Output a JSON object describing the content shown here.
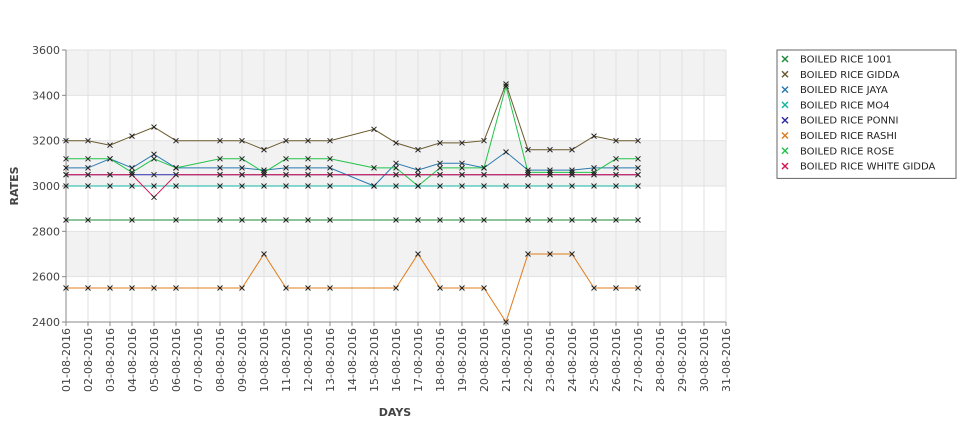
{
  "chart_data": {
    "type": "line",
    "xlabel": "DAYS",
    "ylabel": "RATES",
    "ylim": [
      2400,
      3600
    ],
    "yticks": [
      2400,
      2600,
      2800,
      3000,
      3200,
      3400,
      3600
    ],
    "grid": true,
    "legend_position": "right",
    "categories": [
      "01-08-2016",
      "02-08-2016",
      "03-08-2016",
      "04-08-2016",
      "05-08-2016",
      "06-08-2016",
      "07-08-2016",
      "08-08-2016",
      "09-08-2016",
      "10-08-2016",
      "11-08-2016",
      "12-08-2016",
      "13-08-2016",
      "14-08-2016",
      "15-08-2016",
      "16-08-2016",
      "17-08-2016",
      "18-08-2016",
      "19-08-2016",
      "20-08-2016",
      "21-08-2016",
      "22-08-2016",
      "23-08-2016",
      "24-08-2016",
      "25-08-2016",
      "26-08-2016",
      "27-08-2016",
      "28-08-2016",
      "29-08-2016",
      "30-08-2016",
      "31-08-2016"
    ],
    "series": [
      {
        "name": "BOILED RICE 1001",
        "color": "#1e8a3a",
        "values": [
          2850,
          2850,
          null,
          2850,
          null,
          2850,
          null,
          2850,
          2850,
          2850,
          2850,
          2850,
          2850,
          null,
          null,
          2850,
          2850,
          2850,
          2850,
          2850,
          null,
          2850,
          2850,
          2850,
          2850,
          2850,
          2850,
          null,
          null,
          null,
          null
        ]
      },
      {
        "name": "BOILED RICE GIDDA",
        "color": "#6b5a2e",
        "values": [
          3200,
          3200,
          3180,
          3220,
          3260,
          3200,
          null,
          3200,
          3200,
          3160,
          3200,
          3200,
          3200,
          null,
          3250,
          3190,
          3160,
          3190,
          3190,
          3200,
          3450,
          3160,
          3160,
          3160,
          3220,
          3200,
          3200,
          null,
          null,
          null,
          null
        ]
      },
      {
        "name": "BOILED RICE JAYA",
        "color": "#2a7ab0",
        "values": [
          3080,
          3080,
          3120,
          3080,
          3140,
          3080,
          null,
          3080,
          3080,
          3070,
          3080,
          3080,
          3080,
          null,
          3000,
          3100,
          3070,
          3100,
          3100,
          3080,
          3150,
          3070,
          3070,
          3070,
          3080,
          3080,
          3080,
          null,
          null,
          null,
          null
        ]
      },
      {
        "name": "BOILED RICE MO4",
        "color": "#10b6a0",
        "values": [
          3000,
          3000,
          3000,
          3000,
          3000,
          3000,
          null,
          3000,
          3000,
          3000,
          3000,
          3000,
          3000,
          null,
          3000,
          3000,
          3000,
          3000,
          3000,
          3000,
          3000,
          3000,
          3000,
          3000,
          3000,
          3000,
          3000,
          null,
          null,
          null,
          null
        ]
      },
      {
        "name": "BOILED RICE PONNI",
        "color": "#2a2aa6",
        "values": [
          3050,
          3050,
          3050,
          3050,
          3050,
          3050,
          null,
          3050,
          3050,
          3050,
          3050,
          3050,
          3050,
          null,
          null,
          3050,
          3050,
          3050,
          3050,
          3050,
          null,
          3050,
          3050,
          3050,
          3050,
          3050,
          3050,
          null,
          null,
          null,
          null
        ]
      },
      {
        "name": "BOILED RICE RASHI",
        "color": "#e07b1a",
        "values": [
          2550,
          2550,
          2550,
          2550,
          2550,
          2550,
          null,
          2550,
          2550,
          2700,
          2550,
          2550,
          2550,
          null,
          null,
          2550,
          2700,
          2550,
          2550,
          2550,
          2400,
          2700,
          2700,
          2700,
          2550,
          2550,
          2550,
          null,
          null,
          null,
          null
        ]
      },
      {
        "name": "BOILED RICE ROSE",
        "color": "#22c24a",
        "values": [
          3120,
          3120,
          3120,
          3060,
          3120,
          3080,
          null,
          3120,
          3120,
          3060,
          3120,
          3120,
          3120,
          null,
          3080,
          3080,
          3000,
          3080,
          3080,
          3080,
          3440,
          3060,
          3060,
          3060,
          3060,
          3120,
          3120,
          null,
          null,
          null,
          null
        ]
      },
      {
        "name": "BOILED RICE WHITE GIDDA",
        "color": "#d4124e",
        "values": [
          3050,
          3050,
          3050,
          3050,
          2950,
          3050,
          null,
          3050,
          3050,
          3050,
          3050,
          3050,
          3050,
          null,
          null,
          3050,
          3050,
          3050,
          3050,
          3050,
          null,
          3050,
          3050,
          3050,
          3050,
          3050,
          3050,
          null,
          null,
          null,
          null
        ]
      }
    ]
  }
}
